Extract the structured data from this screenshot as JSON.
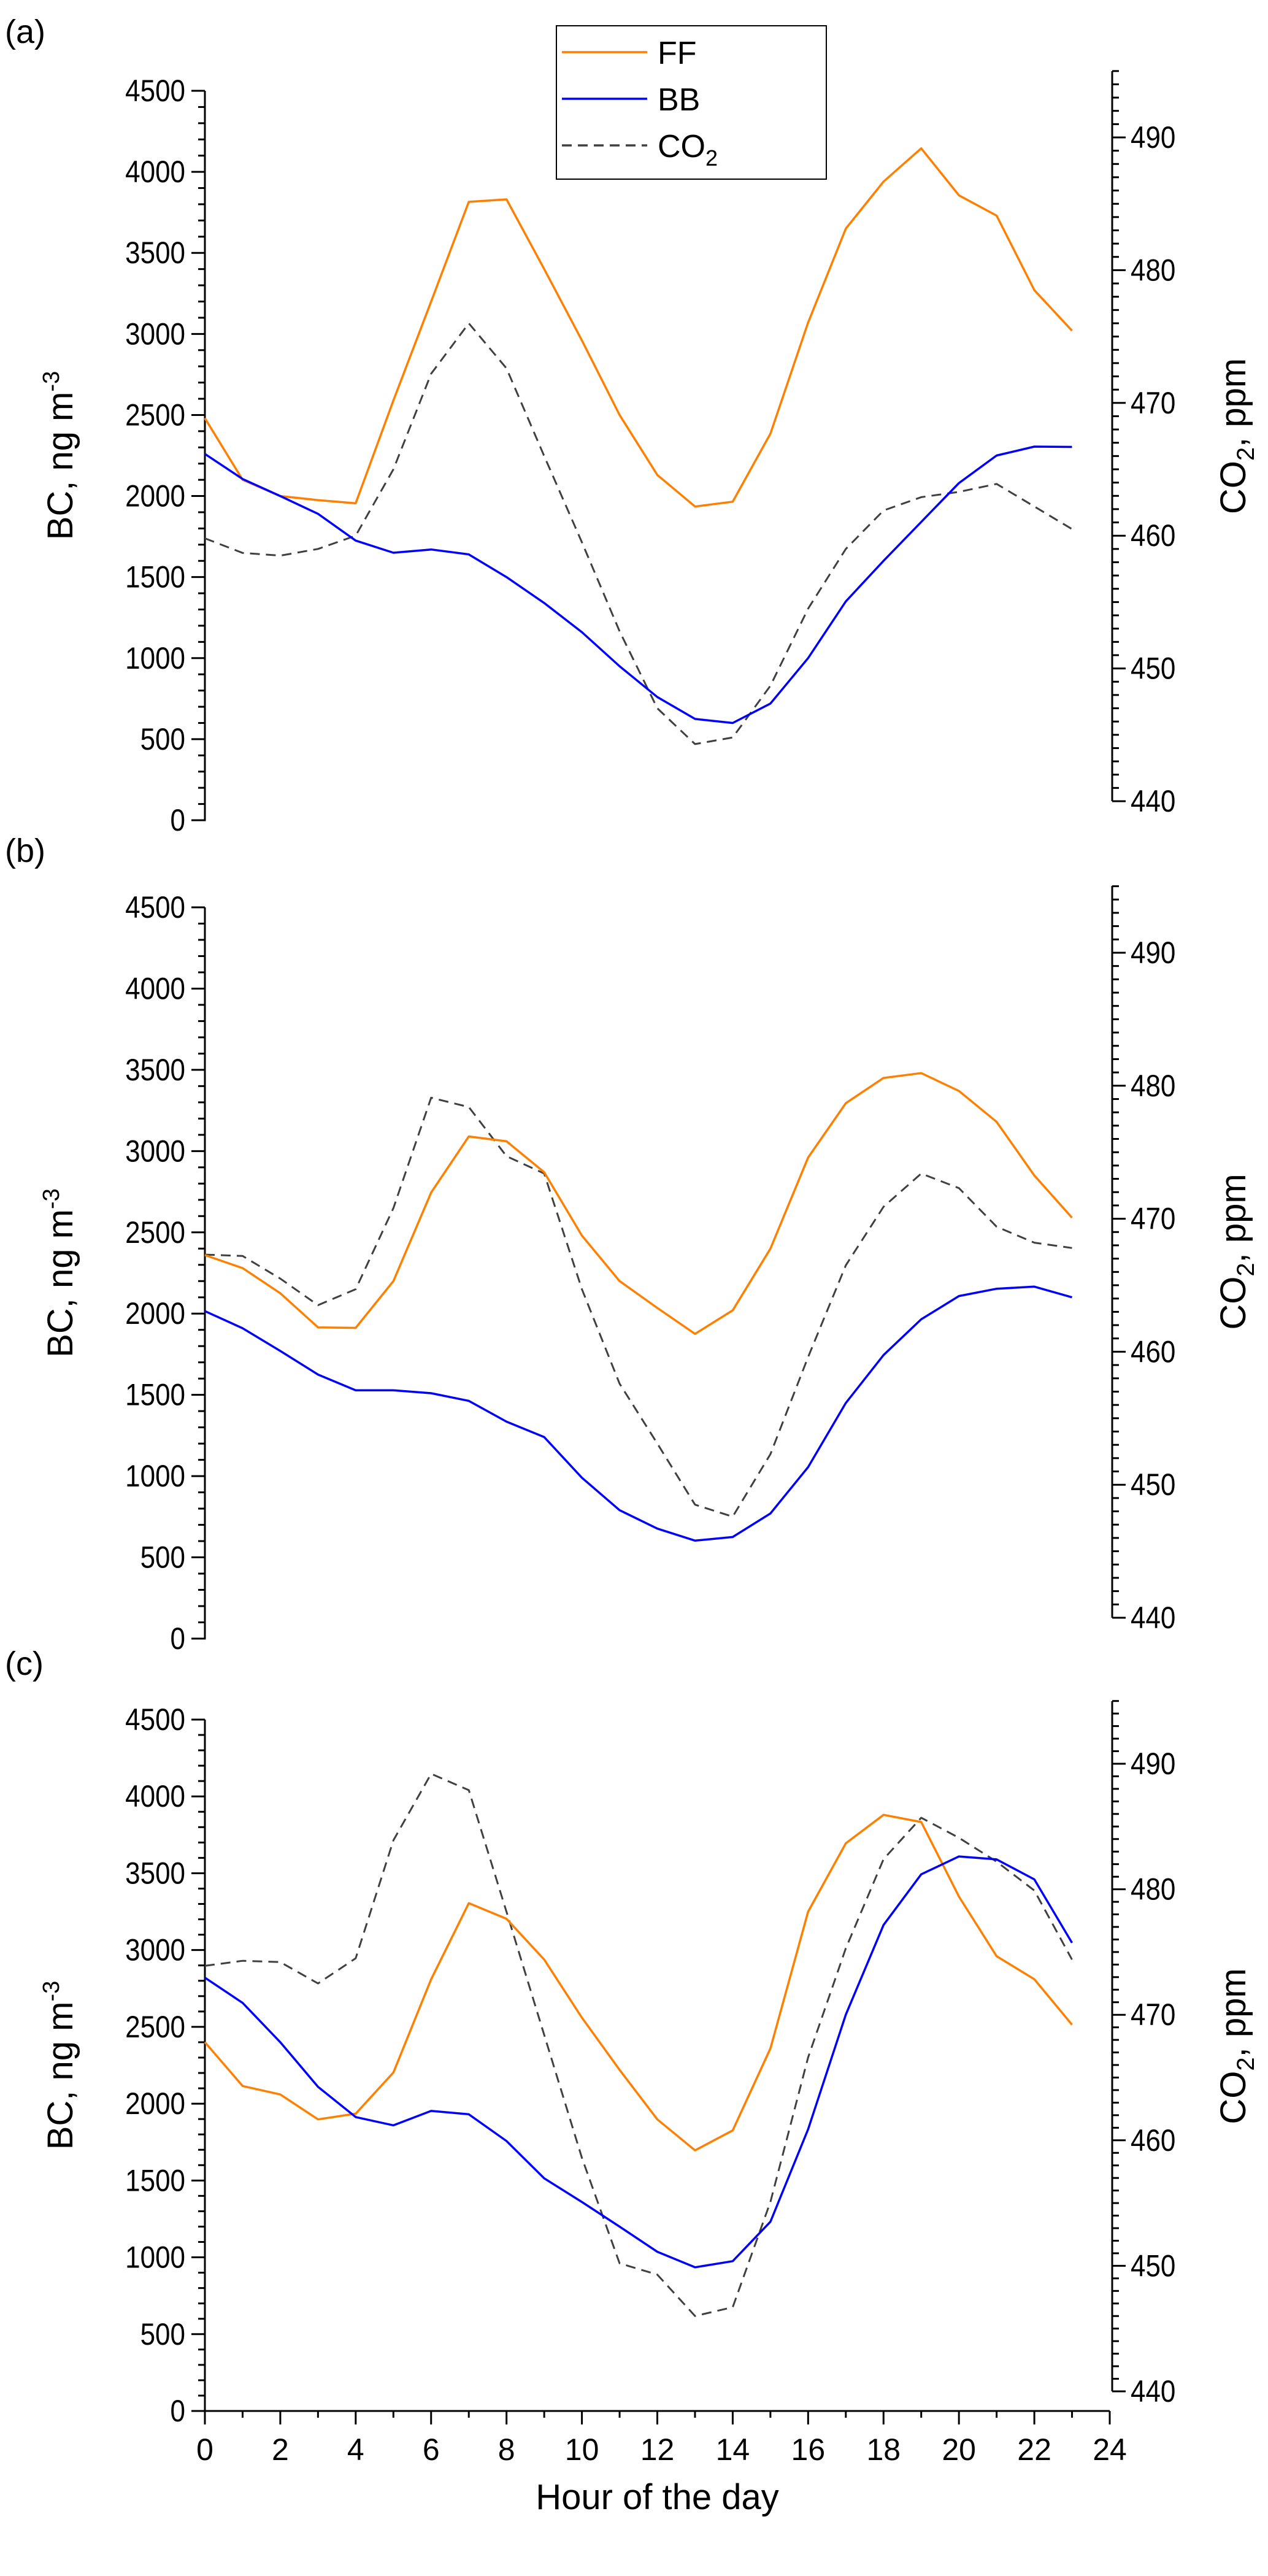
{
  "colors": {
    "FF": "#ff8000",
    "BB": "#0000ff",
    "CO2": "#404040"
  },
  "legend": [
    {
      "key": "FF",
      "label": "FF",
      "sub": ""
    },
    {
      "key": "BB",
      "label": "BB",
      "sub": ""
    },
    {
      "key": "CO2",
      "label": "CO",
      "sub": "2"
    }
  ],
  "xlabel": "Hour of the day",
  "chart_data": [
    {
      "type": "line",
      "panel_label": "(a)",
      "x": [
        0,
        1,
        2,
        3,
        4,
        5,
        6,
        7,
        8,
        9,
        10,
        11,
        12,
        13,
        14,
        15,
        16,
        17,
        18,
        19,
        20,
        21,
        22,
        23
      ],
      "ylabel": "BC, ng m",
      "ylabel_sup": "-3",
      "y2label": "CO",
      "y2label_sub": "2",
      "y2label_tail": ", ppm",
      "ylim": [
        0,
        4500
      ],
      "yticks": [
        0,
        500,
        1000,
        1500,
        2000,
        2500,
        3000,
        3500,
        4000,
        4500
      ],
      "y2lim": [
        440,
        490
      ],
      "y2ticks": [
        440,
        450,
        460,
        470,
        480,
        490
      ],
      "series": [
        {
          "name": "FF",
          "axis": "left",
          "values": [
            2480,
            2100,
            2000,
            1975,
            1955,
            2590,
            3200,
            3815,
            3830,
            3400,
            2960,
            2500,
            2130,
            1935,
            1965,
            2385,
            3070,
            3650,
            3940,
            4145,
            3855,
            3730,
            3270,
            3020
          ]
        },
        {
          "name": "BB",
          "axis": "left",
          "values": [
            2260,
            2105,
            2000,
            1890,
            1725,
            1650,
            1670,
            1640,
            1500,
            1340,
            1160,
            950,
            760,
            625,
            600,
            720,
            1000,
            1350,
            1600,
            1840,
            2080,
            2250,
            2305,
            2303
          ]
        },
        {
          "name": "CO2",
          "axis": "right",
          "values": [
            459.8,
            458.7,
            458.5,
            459.0,
            460.0,
            465.0,
            472.2,
            476.0,
            472.6,
            466.0,
            459.5,
            452.8,
            447.0,
            444.3,
            444.8,
            448.7,
            454.5,
            459.0,
            461.9,
            462.9,
            463.3,
            463.9,
            462.2,
            460.5
          ]
        }
      ]
    },
    {
      "type": "line",
      "panel_label": "(b)",
      "x": [
        0,
        1,
        2,
        3,
        4,
        5,
        6,
        7,
        8,
        9,
        10,
        11,
        12,
        13,
        14,
        15,
        16,
        17,
        18,
        19,
        20,
        21,
        22,
        23
      ],
      "ylabel": "BC, ng m",
      "ylabel_sup": "-3",
      "y2label": "CO",
      "y2label_sub": "2",
      "y2label_tail": ", ppm",
      "ylim": [
        0,
        4500
      ],
      "yticks": [
        0,
        500,
        1000,
        1500,
        2000,
        2500,
        3000,
        3500,
        4000,
        4500
      ],
      "y2lim": [
        440,
        490
      ],
      "y2ticks": [
        440,
        450,
        460,
        470,
        480,
        490
      ],
      "series": [
        {
          "name": "FF",
          "axis": "left",
          "values": [
            2360,
            2280,
            2125,
            1915,
            1912,
            2200,
            2745,
            3090,
            3060,
            2870,
            2480,
            2200,
            2035,
            1875,
            2020,
            2400,
            2960,
            3295,
            3450,
            3480,
            3370,
            3180,
            2850,
            2590
          ]
        },
        {
          "name": "BB",
          "axis": "left",
          "values": [
            2015,
            1910,
            1770,
            1625,
            1528,
            1528,
            1510,
            1463,
            1335,
            1240,
            990,
            790,
            677,
            603,
            625,
            770,
            1055,
            1450,
            1745,
            1965,
            2108,
            2153,
            2166,
            2100
          ]
        },
        {
          "name": "CO2",
          "axis": "right",
          "values": [
            467.3,
            467.2,
            465.5,
            463.5,
            464.7,
            470.8,
            479.1,
            478.4,
            474.7,
            473.4,
            464.7,
            457.6,
            453.1,
            448.5,
            447.6,
            452.3,
            459.6,
            466.5,
            470.9,
            473.4,
            472.3,
            469.4,
            468.2,
            467.8
          ]
        }
      ]
    },
    {
      "type": "line",
      "panel_label": "(c)",
      "x": [
        0,
        1,
        2,
        3,
        4,
        5,
        6,
        7,
        8,
        9,
        10,
        11,
        12,
        13,
        14,
        15,
        16,
        17,
        18,
        19,
        20,
        21,
        22,
        23
      ],
      "xlim": [
        0,
        24
      ],
      "xticks": [
        0,
        2,
        4,
        6,
        8,
        10,
        12,
        14,
        16,
        18,
        20,
        22,
        24
      ],
      "ylabel": "BC, ng m",
      "ylabel_sup": "-3",
      "y2label": "CO",
      "y2label_sub": "2",
      "y2label_tail": ", ppm",
      "ylim": [
        0,
        4500
      ],
      "yticks": [
        0,
        500,
        1000,
        1500,
        2000,
        2500,
        3000,
        3500,
        4000,
        4500
      ],
      "y2lim": [
        440,
        490
      ],
      "y2ticks": [
        440,
        450,
        460,
        470,
        480,
        490
      ],
      "series": [
        {
          "name": "FF",
          "axis": "left",
          "values": [
            2400,
            2115,
            2060,
            1898,
            1935,
            2203,
            2810,
            3305,
            3203,
            2938,
            2560,
            2220,
            1898,
            1696,
            1826,
            2360,
            3250,
            3695,
            3880,
            3833,
            3348,
            2960,
            2810,
            2514
          ]
        },
        {
          "name": "BB",
          "axis": "left",
          "values": [
            2820,
            2656,
            2400,
            2110,
            1913,
            1859,
            1953,
            1931,
            1757,
            1514,
            1360,
            1200,
            1036,
            935,
            975,
            1232,
            1833,
            2580,
            3163,
            3493,
            3609,
            3590,
            3460,
            3047
          ]
        },
        {
          "name": "CO2",
          "axis": "right",
          "values": [
            473.9,
            474.3,
            474.2,
            472.5,
            474.5,
            483.9,
            489.2,
            487.9,
            478.2,
            468.4,
            458.6,
            450.2,
            449.3,
            446.0,
            446.7,
            455.1,
            466.6,
            475.3,
            482.4,
            485.7,
            484.1,
            482.2,
            479.9,
            474.4
          ]
        }
      ]
    }
  ]
}
